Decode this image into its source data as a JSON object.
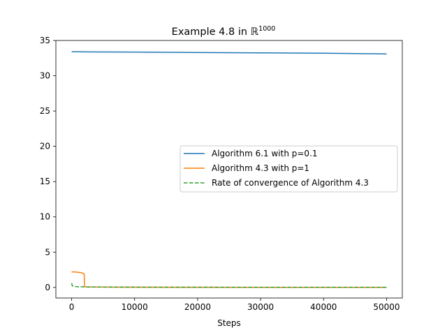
{
  "chart_data": {
    "type": "line",
    "title": "Example 4.8 in ",
    "title_math": "ℝ",
    "title_superscript": "1000",
    "xlabel": "Steps",
    "ylabel": "",
    "xlim": [
      -2500,
      52500
    ],
    "ylim": [
      -1.5,
      35
    ],
    "xticks": [
      0,
      10000,
      20000,
      30000,
      40000,
      50000
    ],
    "yticks": [
      0,
      5,
      10,
      15,
      20,
      25,
      30,
      35
    ],
    "xtick_labels": [
      "0",
      "10000",
      "20000",
      "30000",
      "40000",
      "50000"
    ],
    "ytick_labels": [
      "0",
      "5",
      "10",
      "15",
      "20",
      "25",
      "30",
      "35"
    ],
    "grid": false,
    "legend_position": "center-right",
    "series": [
      {
        "name": "Algorithm 6.1 with p=0.1",
        "color": "#1f77b4",
        "style": "solid",
        "x": [
          0,
          10000,
          20000,
          30000,
          40000,
          50000
        ],
        "y": [
          33.4,
          33.35,
          33.3,
          33.25,
          33.2,
          33.1
        ]
      },
      {
        "name": "Algorithm 4.3 with p=1",
        "color": "#ff7f0e",
        "style": "solid",
        "x": [
          0,
          500,
          1000,
          1500,
          1800,
          2000,
          2050,
          2200,
          5000,
          10000,
          20000,
          30000,
          40000,
          50000
        ],
        "y": [
          2.2,
          2.2,
          2.15,
          2.1,
          2.0,
          1.9,
          0.1,
          0.08,
          0.05,
          0.03,
          0.02,
          0.01,
          0.01,
          0.01
        ]
      },
      {
        "name": "Rate of convergence of Algorithm 4.3",
        "color": "#2ca02c",
        "style": "dashed",
        "x": [
          0,
          100,
          300,
          1000,
          3000,
          10000,
          20000,
          30000,
          40000,
          50000
        ],
        "y": [
          0.6,
          0.25,
          0.15,
          0.1,
          0.06,
          0.04,
          0.03,
          0.02,
          0.02,
          0.02
        ]
      }
    ]
  }
}
